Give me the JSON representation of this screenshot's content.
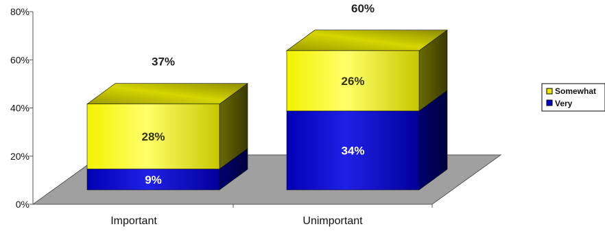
{
  "chart_data": {
    "type": "bar",
    "stacked": true,
    "three_d": true,
    "categories": [
      "Important",
      "Unimportant"
    ],
    "series": [
      {
        "name": "Very",
        "values": [
          9,
          34
        ],
        "color": "#0000c8"
      },
      {
        "name": "Somewhat",
        "values": [
          28,
          26
        ],
        "color": "#e8e800"
      }
    ],
    "totals": [
      37,
      60
    ],
    "y_ticks": [
      "0%",
      "20%",
      "40%",
      "60%",
      "80%"
    ],
    "ylim": [
      0,
      80
    ],
    "value_suffix": "%",
    "legend_position": "right",
    "grid": false,
    "floor_color": "#a0a0a0",
    "title": "",
    "xlabel": "",
    "ylabel": ""
  }
}
